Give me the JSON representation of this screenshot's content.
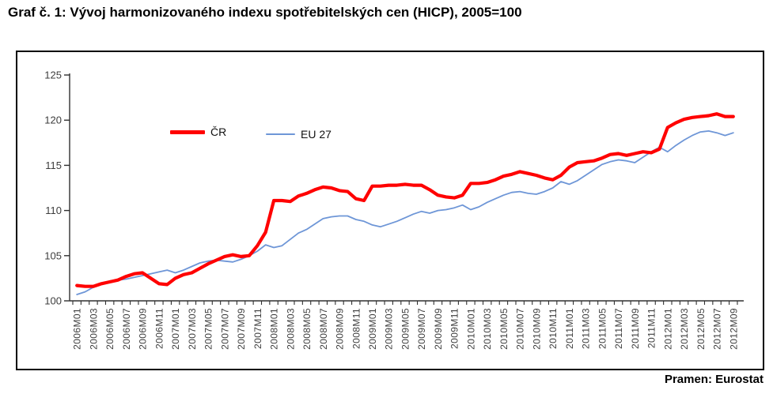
{
  "page": {
    "title": "Graf č. 1: Vývoj harmonizovaného indexu spotřebitelských cen (HICP), 2005=100",
    "source": "Pramen: Eurostat"
  },
  "chart_data": {
    "type": "line",
    "title": "Graf č. 1: Vývoj harmonizovaného indexu spotřebitelských cen (HICP), 2005=100",
    "x_start": "2006M01",
    "x_end": "2012M09",
    "frequency": "monthly",
    "n_points": 81,
    "ylim": [
      100,
      125
    ],
    "y_ticks": [
      100,
      105,
      110,
      115,
      120,
      125
    ],
    "grid": "off",
    "legend_position": "inside-top",
    "x_tick_labels": [
      "2006M01",
      "2006M03",
      "2006M05",
      "2006M07",
      "2006M09",
      "2006M11",
      "2007M01",
      "2007M03",
      "2007M05",
      "2007M07",
      "2007M09",
      "2007M11",
      "2008M01",
      "2008M03",
      "2008M05",
      "2008M07",
      "2008M09",
      "2008M11",
      "2009M01",
      "2009M03",
      "2009M05",
      "2009M07",
      "2009M09",
      "2009M11",
      "2010M01",
      "2010M03",
      "2010M05",
      "2010M07",
      "2010M09",
      "2010M11",
      "2011M01",
      "2011M03",
      "2011M05",
      "2011M07",
      "2011M09",
      "2011M11",
      "2012M01",
      "2012M03",
      "2012M05",
      "2012M07",
      "2012M09"
    ],
    "legend": [
      {
        "label": "ČR",
        "color": "#FF0000"
      },
      {
        "label": "EU 27",
        "color": "#6E96D7"
      }
    ],
    "series": [
      {
        "name": "ČR",
        "color": "#FF0000",
        "stroke_width": 4.2,
        "values": [
          101.7,
          101.6,
          101.6,
          101.9,
          102.1,
          102.3,
          102.7,
          103.0,
          103.1,
          102.5,
          101.9,
          101.8,
          102.5,
          102.9,
          103.1,
          103.6,
          104.1,
          104.5,
          104.9,
          105.1,
          104.9,
          105.0,
          106.1,
          107.6,
          111.1,
          111.1,
          111.0,
          111.6,
          111.9,
          112.3,
          112.6,
          112.5,
          112.2,
          112.1,
          111.3,
          111.1,
          112.7,
          112.7,
          112.8,
          112.8,
          112.9,
          112.8,
          112.8,
          112.3,
          111.7,
          111.5,
          111.4,
          111.7,
          113.0,
          113.0,
          113.1,
          113.4,
          113.8,
          114.0,
          114.3,
          114.1,
          113.9,
          113.6,
          113.4,
          113.9,
          114.8,
          115.3,
          115.4,
          115.5,
          115.8,
          116.2,
          116.3,
          116.1,
          116.3,
          116.5,
          116.4,
          116.8,
          119.2,
          119.7,
          120.1,
          120.3,
          120.4,
          120.5,
          120.7,
          120.4,
          120.4
        ]
      },
      {
        "name": "EU 27",
        "color": "#6E96D7",
        "stroke_width": 1.8,
        "values": [
          100.7,
          101.0,
          101.5,
          101.9,
          102.2,
          102.3,
          102.4,
          102.6,
          102.8,
          103.0,
          103.2,
          103.4,
          103.1,
          103.4,
          103.8,
          104.2,
          104.4,
          104.5,
          104.4,
          104.3,
          104.6,
          105.0,
          105.5,
          106.2,
          105.9,
          106.1,
          106.8,
          107.5,
          107.9,
          108.5,
          109.1,
          109.3,
          109.4,
          109.4,
          109.0,
          108.8,
          108.4,
          108.2,
          108.5,
          108.8,
          109.2,
          109.6,
          109.9,
          109.7,
          110.0,
          110.1,
          110.3,
          110.6,
          110.1,
          110.4,
          110.9,
          111.3,
          111.7,
          112.0,
          112.1,
          111.9,
          111.8,
          112.1,
          112.5,
          113.2,
          112.9,
          113.3,
          113.9,
          114.5,
          115.1,
          115.4,
          115.6,
          115.5,
          115.3,
          115.9,
          116.5,
          117.0,
          116.5,
          117.2,
          117.8,
          118.3,
          118.7,
          118.8,
          118.6,
          118.3,
          118.6
        ]
      }
    ],
    "axis_color": "#303030",
    "tick_label_color": "#3d3d3d"
  }
}
